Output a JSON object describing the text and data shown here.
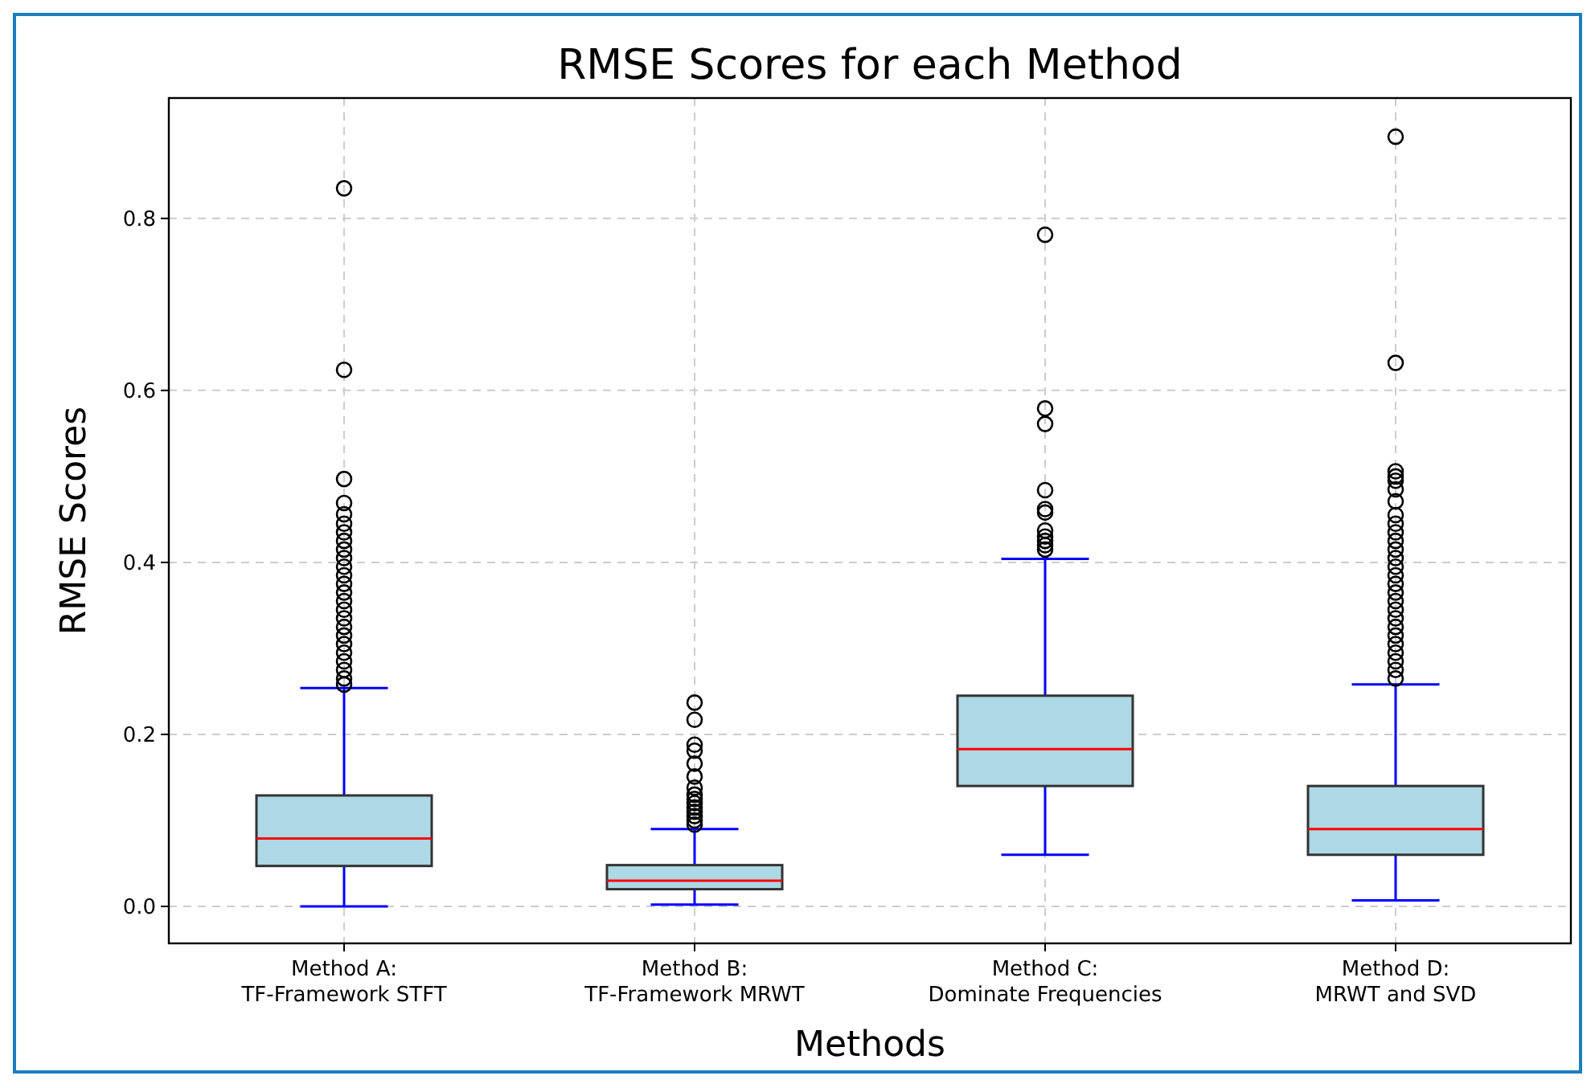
{
  "chart_data": {
    "type": "box",
    "title": "RMSE Scores for each Method",
    "xlabel": "Methods",
    "ylabel": "RMSE Scores",
    "categories": [
      "Method A:\nTF-Framework STFT",
      "Method B:\nTF-Framework MRWT",
      "Method C:\nDominate Frequencies",
      "Method D:\nMRWT and SVD"
    ],
    "ylim": [
      -0.043,
      0.94
    ],
    "yticks": [
      {
        "value": 0,
        "label": "0.0"
      },
      0.2,
      0.4,
      0.6,
      0.8
    ],
    "grid": true,
    "marker": "circle",
    "series": [
      {
        "color": "#add8e6",
        "boxes": [
          {
            "low": 0,
            "q1": 0.047,
            "median": 0.079,
            "q3": 0.129,
            "high": 0.254,
            "outliers": [
              0.835,
              0.624,
              0.497,
              0.469,
              0.456,
              0.445,
              0.435,
              0.425,
              0.415,
              0.405,
              0.395,
              0.385,
              0.375,
              0.365,
              0.355,
              0.345,
              0.335,
              0.325,
              0.315,
              0.305,
              0.295,
              0.285,
              0.275,
              0.265,
              0.258
            ]
          },
          {
            "low": 0.002,
            "q1": 0.02,
            "median": 0.03,
            "q3": 0.048,
            "high": 0.09,
            "outliers": [
              0.237,
              0.217,
              0.188,
              0.181,
              0.166,
              0.151,
              0.138,
              0.13,
              0.125,
              0.12,
              0.115,
              0.11,
              0.105,
              0.1,
              0.095
            ]
          },
          {
            "low": 0.06,
            "q1": 0.14,
            "median": 0.183,
            "q3": 0.245,
            "high": 0.404,
            "outliers": [
              0.781,
              0.579,
              0.561,
              0.484,
              0.462,
              0.458,
              0.437,
              0.43,
              0.425,
              0.42,
              0.415
            ]
          },
          {
            "low": 0.007,
            "q1": 0.06,
            "median": 0.09,
            "q3": 0.14,
            "high": 0.258,
            "outliers": [
              0.895,
              0.632,
              0.506,
              0.5,
              0.495,
              0.485,
              0.471,
              0.455,
              0.445,
              0.435,
              0.425,
              0.415,
              0.405,
              0.395,
              0.385,
              0.375,
              0.365,
              0.355,
              0.345,
              0.335,
              0.325,
              0.315,
              0.305,
              0.295,
              0.285,
              0.275,
              0.265
            ]
          }
        ]
      }
    ]
  }
}
